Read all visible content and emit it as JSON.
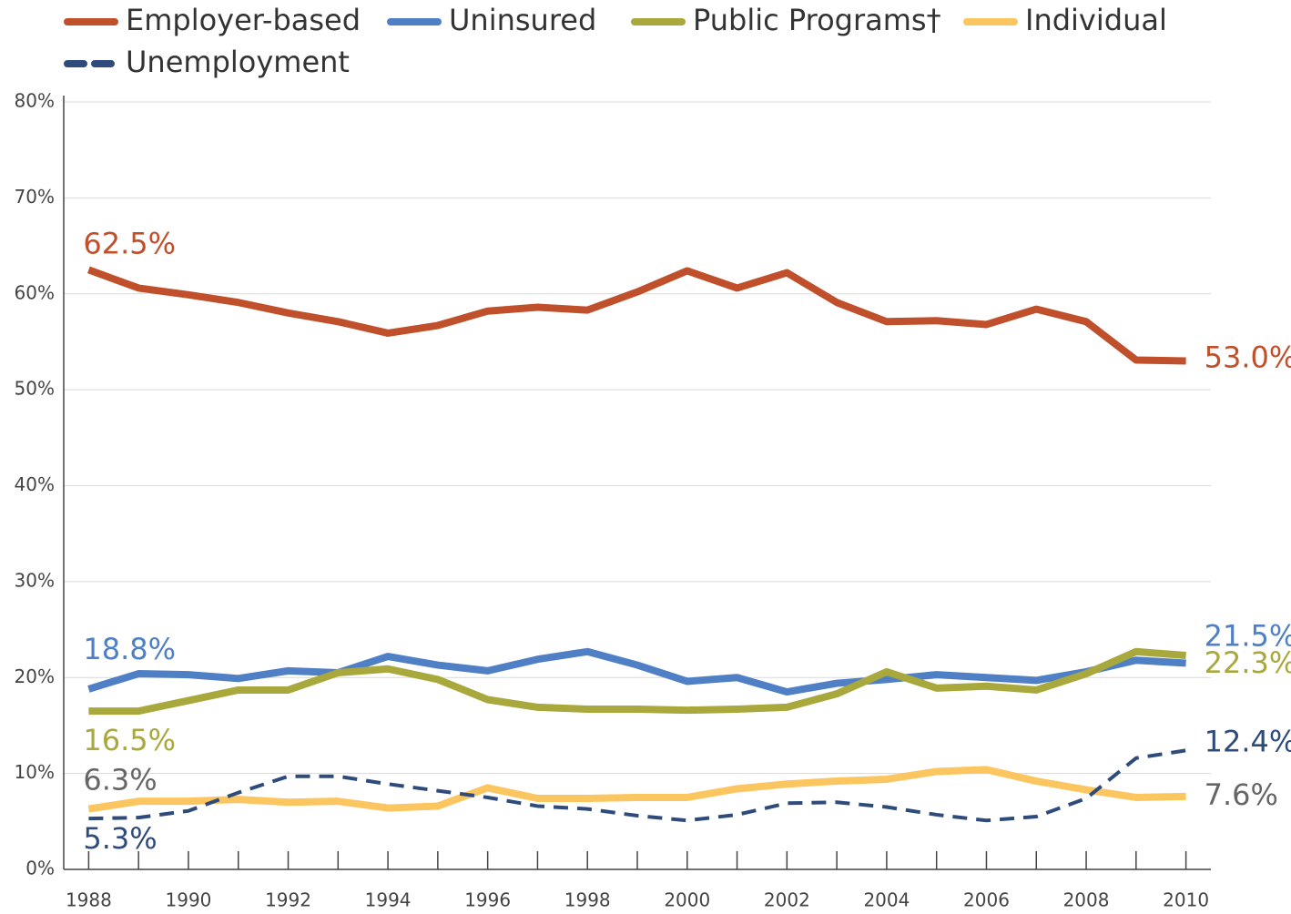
{
  "chart_data": {
    "type": "line",
    "x": [
      1988,
      1989,
      1990,
      1991,
      1992,
      1993,
      1994,
      1995,
      1996,
      1997,
      1998,
      1999,
      2000,
      2001,
      2002,
      2003,
      2004,
      2005,
      2006,
      2007,
      2008,
      2009,
      2010
    ],
    "xlim": [
      1987.5,
      2010.5
    ],
    "xticks": [
      1988,
      1990,
      1992,
      1994,
      1996,
      1998,
      2000,
      2002,
      2004,
      2006,
      2008,
      2010
    ],
    "ylim": [
      0,
      80
    ],
    "yticks": [
      {
        "value": 0,
        "label": "0%"
      },
      {
        "value": 10,
        "label": "10%"
      },
      {
        "value": 20,
        "label": "20%"
      },
      {
        "value": 30,
        "label": "30%"
      },
      {
        "value": 40,
        "label": "40%"
      },
      {
        "value": 50,
        "label": "50%"
      },
      {
        "value": 60,
        "label": "60%"
      },
      {
        "value": 70,
        "label": "70%"
      },
      {
        "value": 80,
        "label": "80%"
      }
    ],
    "grid": true,
    "series": [
      {
        "name": "Employer-based",
        "color": "#c0502b",
        "label_color": "#c0502b",
        "values": [
          62.5,
          60.6,
          59.9,
          59.1,
          58.0,
          57.1,
          55.9,
          56.7,
          58.2,
          58.6,
          58.3,
          60.2,
          62.4,
          60.6,
          62.2,
          59.1,
          57.1,
          57.2,
          56.8,
          58.4,
          57.1,
          53.1,
          53.0
        ],
        "value_labels": [
          "62.5%",
          null,
          null,
          null,
          null,
          null,
          null,
          null,
          null,
          null,
          null,
          null,
          null,
          null,
          null,
          null,
          null,
          null,
          null,
          null,
          null,
          null,
          "53.0%"
        ]
      },
      {
        "name": "Uninsured",
        "color": "#4f7fc4",
        "label_color": "#4f7fc4",
        "values": [
          18.8,
          20.4,
          20.3,
          19.9,
          20.7,
          20.5,
          22.2,
          21.3,
          20.7,
          21.9,
          22.7,
          21.3,
          19.6,
          20.0,
          18.5,
          19.4,
          19.8,
          20.3,
          20.0,
          19.7,
          20.6,
          21.8,
          21.5
        ],
        "value_labels": [
          "18.8%",
          null,
          null,
          null,
          null,
          null,
          null,
          null,
          null,
          null,
          null,
          null,
          null,
          null,
          null,
          null,
          null,
          null,
          null,
          null,
          null,
          null,
          "21.5%"
        ]
      },
      {
        "name": "Public Programs†",
        "color": "#a9a83d",
        "label_color": "#a9a83d",
        "values": [
          16.5,
          16.5,
          17.6,
          18.7,
          18.7,
          20.5,
          20.9,
          19.8,
          17.7,
          16.9,
          16.7,
          16.7,
          16.6,
          16.7,
          16.9,
          18.3,
          20.6,
          18.9,
          19.1,
          18.7,
          20.4,
          22.7,
          22.3
        ],
        "value_labels": [
          "16.5%",
          null,
          null,
          null,
          null,
          null,
          null,
          null,
          null,
          null,
          null,
          null,
          null,
          null,
          null,
          null,
          null,
          null,
          null,
          null,
          null,
          null,
          "22.3%"
        ]
      },
      {
        "name": "Individual",
        "color": "#fbc560",
        "label_color": "#666666",
        "values": [
          6.3,
          7.1,
          7.1,
          7.3,
          7.0,
          7.1,
          6.4,
          6.6,
          8.5,
          7.4,
          7.4,
          7.5,
          7.5,
          8.4,
          8.9,
          9.2,
          9.4,
          10.2,
          10.4,
          9.2,
          8.3,
          7.5,
          7.6
        ],
        "value_labels": [
          "6.3%",
          null,
          null,
          null,
          null,
          null,
          null,
          null,
          null,
          null,
          null,
          null,
          null,
          null,
          null,
          null,
          null,
          null,
          null,
          null,
          null,
          null,
          "7.6%"
        ]
      },
      {
        "name": "Unemployment",
        "color": "#2f4b7c",
        "label_color": "#2f4b7c",
        "dashed": true,
        "values": [
          5.3,
          5.4,
          6.1,
          8.0,
          9.7,
          9.7,
          8.9,
          8.2,
          7.5,
          6.6,
          6.3,
          5.6,
          5.1,
          5.7,
          6.9,
          7.0,
          6.5,
          5.7,
          5.1,
          5.5,
          7.4,
          11.6,
          12.4
        ],
        "value_labels": [
          "5.3%",
          null,
          null,
          null,
          null,
          null,
          null,
          null,
          null,
          null,
          null,
          null,
          null,
          null,
          null,
          null,
          null,
          null,
          null,
          null,
          null,
          null,
          "12.4%"
        ]
      }
    ]
  }
}
